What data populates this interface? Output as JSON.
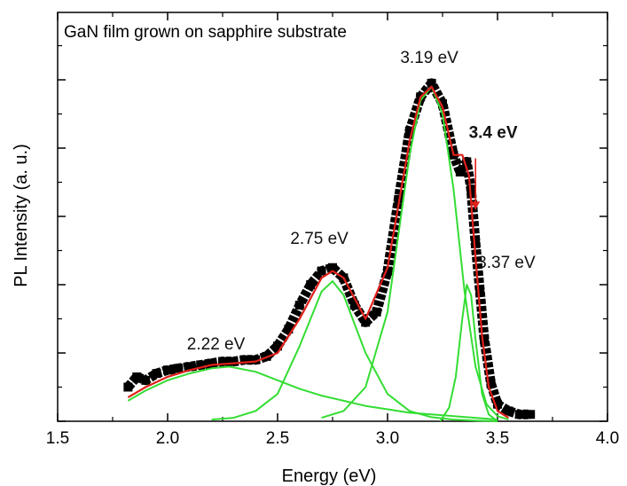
{
  "chart_data": {
    "type": "line",
    "title": "GaN film grown on sapphire substrate",
    "xlabel": "Energy (eV)",
    "ylabel": "PL Intensity (a. u.)",
    "xlim": [
      1.5,
      4.0
    ],
    "ylim": [
      0,
      1.0
    ],
    "x_ticks": [
      "1.5",
      "2.0",
      "2.5",
      "3.0",
      "3.5",
      "4.0"
    ],
    "grid": false,
    "series": [
      {
        "role": "measured",
        "color": "#000000",
        "x": [
          1.82,
          1.86,
          1.9,
          1.95,
          2.0,
          2.05,
          2.1,
          2.15,
          2.2,
          2.25,
          2.3,
          2.35,
          2.4,
          2.45,
          2.5,
          2.55,
          2.6,
          2.65,
          2.7,
          2.75,
          2.8,
          2.85,
          2.9,
          2.95,
          3.0,
          3.05,
          3.1,
          3.15,
          3.2,
          3.25,
          3.3,
          3.33,
          3.36,
          3.38,
          3.4,
          3.42,
          3.44,
          3.47,
          3.5,
          3.55,
          3.6,
          3.65
        ],
        "y": [
          0.1,
          0.13,
          0.12,
          0.14,
          0.15,
          0.155,
          0.16,
          0.165,
          0.17,
          0.175,
          0.175,
          0.18,
          0.18,
          0.19,
          0.22,
          0.27,
          0.34,
          0.4,
          0.44,
          0.45,
          0.42,
          0.34,
          0.29,
          0.32,
          0.44,
          0.65,
          0.85,
          0.95,
          0.99,
          0.93,
          0.78,
          0.73,
          0.76,
          0.68,
          0.52,
          0.38,
          0.24,
          0.11,
          0.05,
          0.03,
          0.02,
          0.02
        ]
      },
      {
        "role": "fit-total",
        "color": "#e0201b",
        "x": [
          1.82,
          1.9,
          2.0,
          2.1,
          2.2,
          2.3,
          2.4,
          2.5,
          2.6,
          2.7,
          2.75,
          2.8,
          2.9,
          3.0,
          3.1,
          3.15,
          3.2,
          3.25,
          3.3,
          3.34,
          3.37,
          3.4,
          3.43,
          3.46,
          3.5,
          3.55
        ],
        "y": [
          0.07,
          0.1,
          0.13,
          0.15,
          0.165,
          0.17,
          0.175,
          0.2,
          0.3,
          0.42,
          0.44,
          0.42,
          0.3,
          0.45,
          0.82,
          0.95,
          0.98,
          0.92,
          0.78,
          0.78,
          0.72,
          0.48,
          0.25,
          0.1,
          0.03,
          0.01
        ]
      },
      {
        "role": "peak-2.22",
        "color": "#33dd33",
        "x": [
          1.82,
          1.9,
          2.0,
          2.1,
          2.2,
          2.28,
          2.4,
          2.5,
          2.6,
          2.7,
          2.8,
          2.9,
          3.0,
          3.1,
          3.2,
          3.3,
          3.4,
          3.5
        ],
        "y": [
          0.06,
          0.09,
          0.12,
          0.14,
          0.155,
          0.16,
          0.145,
          0.12,
          0.095,
          0.075,
          0.06,
          0.045,
          0.035,
          0.025,
          0.02,
          0.015,
          0.01,
          0.005
        ]
      },
      {
        "role": "peak-2.75",
        "color": "#33dd33",
        "x": [
          2.2,
          2.3,
          2.4,
          2.5,
          2.6,
          2.7,
          2.75,
          2.8,
          2.9,
          3.0,
          3.1,
          3.2,
          3.3,
          3.4,
          3.5
        ],
        "y": [
          0.005,
          0.01,
          0.03,
          0.08,
          0.22,
          0.38,
          0.41,
          0.37,
          0.2,
          0.08,
          0.03,
          0.012,
          0.005,
          0.002,
          0.0
        ]
      },
      {
        "role": "peak-3.19",
        "color": "#33dd33",
        "x": [
          2.7,
          2.8,
          2.9,
          3.0,
          3.05,
          3.1,
          3.15,
          3.2,
          3.25,
          3.3,
          3.35,
          3.4,
          3.45,
          3.5,
          3.55
        ],
        "y": [
          0.01,
          0.03,
          0.1,
          0.32,
          0.55,
          0.78,
          0.94,
          0.98,
          0.9,
          0.68,
          0.38,
          0.16,
          0.05,
          0.015,
          0.005
        ]
      },
      {
        "role": "peak-3.37",
        "color": "#33dd33",
        "x": [
          3.24,
          3.28,
          3.31,
          3.34,
          3.36,
          3.38,
          3.4,
          3.43,
          3.46,
          3.5
        ],
        "y": [
          0.0,
          0.04,
          0.13,
          0.3,
          0.4,
          0.37,
          0.24,
          0.08,
          0.02,
          0.0
        ]
      }
    ],
    "annotations": [
      {
        "text": "2.22 eV",
        "x": 2.22,
        "y": 0.21,
        "color": "#111111"
      },
      {
        "text": "2.75 eV",
        "x": 2.69,
        "y": 0.52,
        "color": "#111111"
      },
      {
        "text": "3.19 eV",
        "x": 3.19,
        "y": 1.05,
        "color": "#111111"
      },
      {
        "text": "3.37 eV",
        "x": 3.54,
        "y": 0.45,
        "color": "#111111"
      },
      {
        "text": "3.4 eV",
        "x": 3.48,
        "y": 0.83,
        "color": "#e0201b",
        "bold": true
      }
    ],
    "arrow": {
      "color": "#e0201b",
      "x": 3.4,
      "y_from": 0.77,
      "y_to": 0.62
    }
  }
}
